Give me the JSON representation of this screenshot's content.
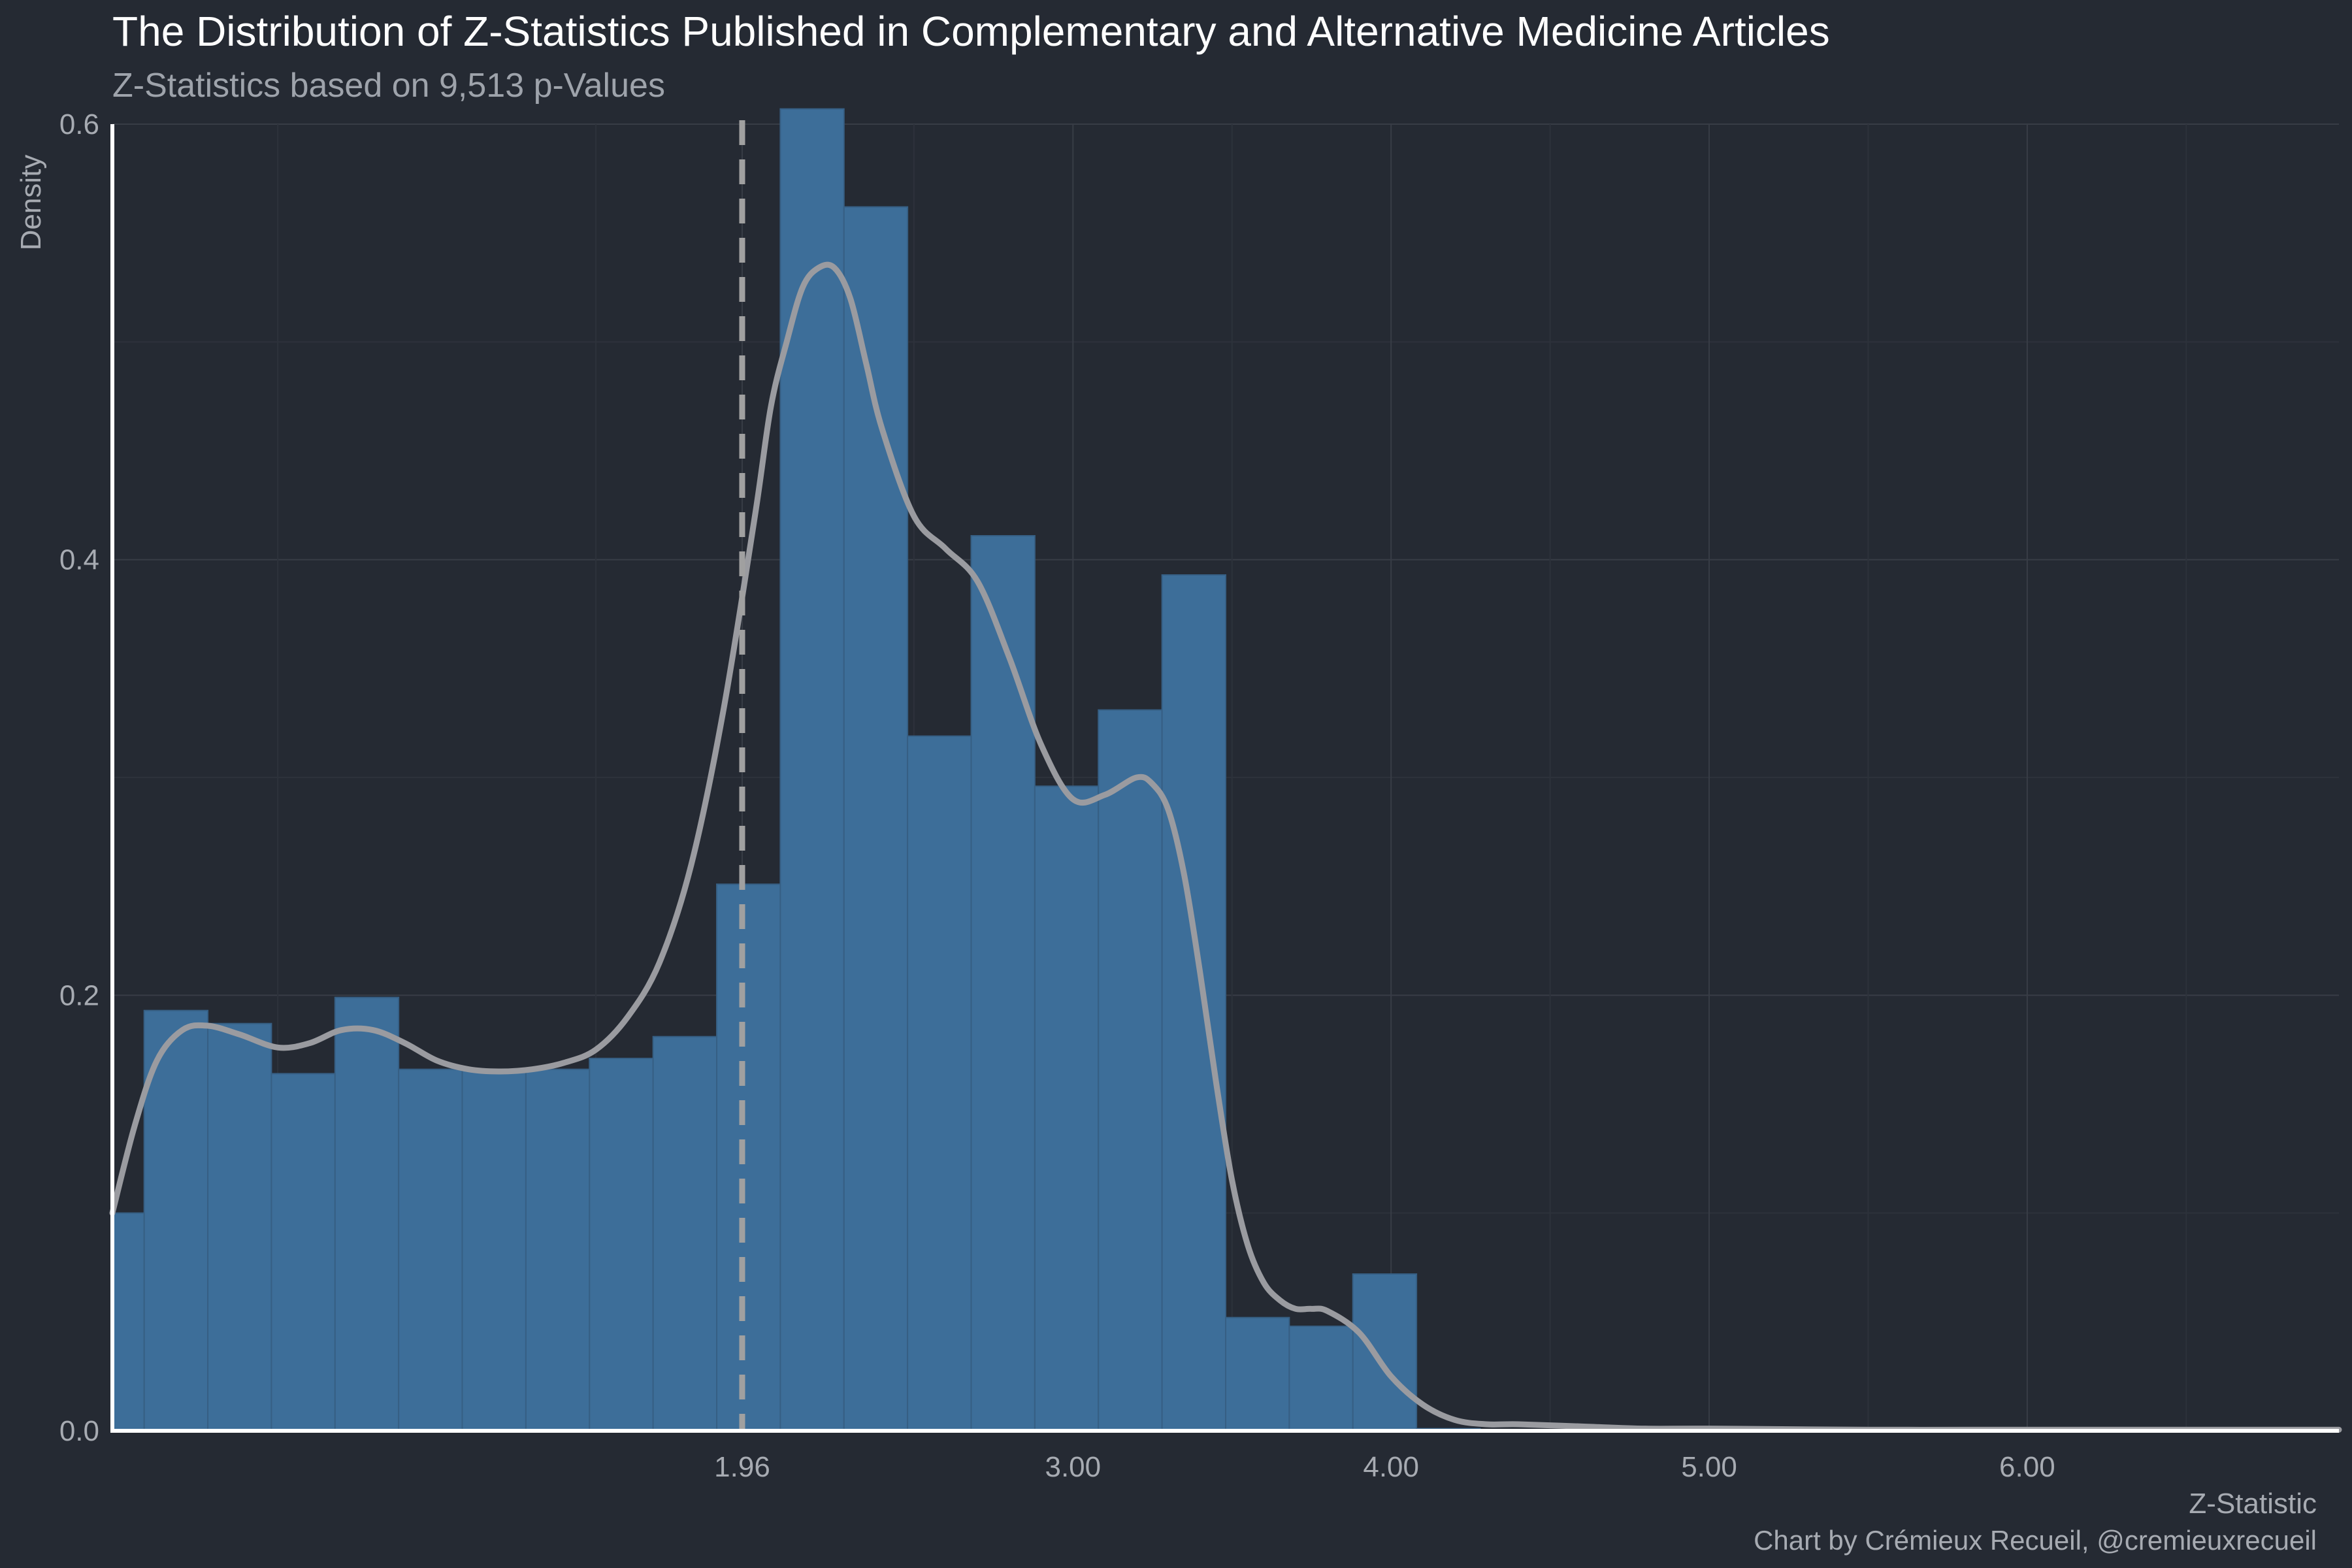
{
  "colors": {
    "background": "#252a33",
    "bar_fill": "#3d6e99",
    "density_line": "#9a9ba0",
    "reference_line": "#a0a0a0",
    "axis_line": "#ffffff",
    "grid": "#383d46"
  },
  "chart_data": {
    "type": "bar",
    "title": "The Distribution of Z-Statistics Published in Complementary and Alternative Medicine Articles",
    "subtitle": "Z-Statistics based on 9,513 p-Values",
    "xlabel": "Z-Statistic",
    "ylabel": "Density",
    "caption": "Chart by Crémieux Recueil, @cremieuxrecueil",
    "xlim": [
      -0.02,
      6.98
    ],
    "ylim": [
      0,
      0.6
    ],
    "x_ticks": [
      {
        "value": 1.96,
        "label": "1.96"
      },
      {
        "value": 3.0,
        "label": "3.00"
      },
      {
        "value": 4.0,
        "label": "4.00"
      },
      {
        "value": 5.0,
        "label": "5.00"
      },
      {
        "value": 6.0,
        "label": "6.00"
      }
    ],
    "y_ticks": [
      {
        "value": 0.0,
        "label": "0.0"
      },
      {
        "value": 0.2,
        "label": "0.2"
      },
      {
        "value": 0.4,
        "label": "0.4"
      },
      {
        "value": 0.6,
        "label": "0.6"
      }
    ],
    "bin_width": 0.2,
    "bins": [
      {
        "x0": -0.02,
        "x1": 0.08,
        "density": 0.1
      },
      {
        "x0": 0.08,
        "x1": 0.28,
        "density": 0.193
      },
      {
        "x0": 0.28,
        "x1": 0.48,
        "density": 0.187
      },
      {
        "x0": 0.48,
        "x1": 0.68,
        "density": 0.164
      },
      {
        "x0": 0.68,
        "x1": 0.88,
        "density": 0.199
      },
      {
        "x0": 0.88,
        "x1": 1.08,
        "density": 0.166
      },
      {
        "x0": 1.08,
        "x1": 1.28,
        "density": 0.166
      },
      {
        "x0": 1.28,
        "x1": 1.48,
        "density": 0.166
      },
      {
        "x0": 1.48,
        "x1": 1.68,
        "density": 0.171
      },
      {
        "x0": 1.68,
        "x1": 1.88,
        "density": 0.181
      },
      {
        "x0": 1.88,
        "x1": 2.08,
        "density": 0.251
      },
      {
        "x0": 2.08,
        "x1": 2.28,
        "density": 0.607
      },
      {
        "x0": 2.28,
        "x1": 2.48,
        "density": 0.562
      },
      {
        "x0": 2.48,
        "x1": 2.68,
        "density": 0.319
      },
      {
        "x0": 2.68,
        "x1": 2.88,
        "density": 0.411
      },
      {
        "x0": 2.88,
        "x1": 3.08,
        "density": 0.296
      },
      {
        "x0": 3.08,
        "x1": 3.28,
        "density": 0.331
      },
      {
        "x0": 3.28,
        "x1": 3.48,
        "density": 0.393
      },
      {
        "x0": 3.48,
        "x1": 3.68,
        "density": 0.052
      },
      {
        "x0": 3.68,
        "x1": 3.88,
        "density": 0.048
      },
      {
        "x0": 3.88,
        "x1": 4.08,
        "density": 0.072
      },
      {
        "x0": 4.08,
        "x1": 4.28,
        "density": 0.001
      }
    ],
    "density_curve": {
      "x": [
        -0.02,
        0.05,
        0.12,
        0.2,
        0.28,
        0.38,
        0.5,
        0.6,
        0.7,
        0.8,
        0.9,
        1.0,
        1.1,
        1.2,
        1.3,
        1.4,
        1.5,
        1.6,
        1.7,
        1.8,
        1.9,
        2.0,
        2.05,
        2.1,
        2.15,
        2.2,
        2.25,
        2.3,
        2.35,
        2.4,
        2.5,
        2.6,
        2.7,
        2.8,
        2.9,
        3.0,
        3.1,
        3.2,
        3.25,
        3.3,
        3.35,
        3.4,
        3.45,
        3.5,
        3.55,
        3.6,
        3.65,
        3.7,
        3.75,
        3.8,
        3.9,
        4.0,
        4.1,
        4.2,
        4.3,
        4.4,
        4.6,
        4.8,
        5.0,
        5.5,
        6.0,
        6.5,
        6.98
      ],
      "y": [
        0.1,
        0.14,
        0.17,
        0.184,
        0.186,
        0.182,
        0.176,
        0.178,
        0.184,
        0.184,
        0.178,
        0.17,
        0.166,
        0.165,
        0.166,
        0.169,
        0.175,
        0.19,
        0.215,
        0.26,
        0.33,
        0.42,
        0.47,
        0.5,
        0.525,
        0.534,
        0.534,
        0.52,
        0.49,
        0.46,
        0.42,
        0.405,
        0.39,
        0.355,
        0.315,
        0.29,
        0.292,
        0.3,
        0.297,
        0.285,
        0.255,
        0.21,
        0.16,
        0.115,
        0.085,
        0.068,
        0.06,
        0.056,
        0.056,
        0.055,
        0.045,
        0.025,
        0.012,
        0.005,
        0.003,
        0.003,
        0.002,
        0.001,
        0.001,
        0.0005,
        0.0005,
        0.0005,
        0.0005
      ]
    },
    "reference_line": {
      "x": 1.96,
      "style": "dashed"
    }
  }
}
